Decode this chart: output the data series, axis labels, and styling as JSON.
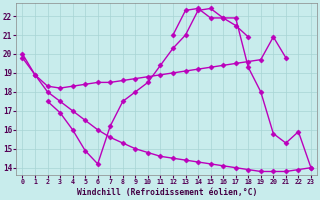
{
  "xlabel": "Windchill (Refroidissement éolien,°C)",
  "xlim": [
    -0.5,
    23.5
  ],
  "ylim": [
    13.6,
    22.7
  ],
  "xticks": [
    0,
    1,
    2,
    3,
    4,
    5,
    6,
    7,
    8,
    9,
    10,
    11,
    12,
    13,
    14,
    15,
    16,
    17,
    18,
    19,
    20,
    21,
    22,
    23
  ],
  "yticks": [
    14,
    15,
    16,
    17,
    18,
    19,
    20,
    21,
    22
  ],
  "background_color": "#c8ecec",
  "grid_color": "#a8d4d4",
  "line_color": "#bb00bb",
  "line_width": 1.0,
  "marker": "D",
  "marker_size": 2.5,
  "curves": [
    {
      "x": [
        12,
        13,
        14,
        15,
        16,
        17,
        18
      ],
      "y": [
        21.0,
        22.3,
        22.4,
        21.9,
        21.9,
        21.5,
        20.9
      ]
    },
    {
      "x": [
        0,
        1,
        2,
        3,
        4,
        5,
        6,
        7,
        8,
        9,
        10,
        11,
        12,
        13,
        14,
        15,
        16,
        17,
        18,
        19,
        20,
        21
      ],
      "y": [
        20.0,
        18.9,
        18.3,
        18.2,
        18.3,
        18.4,
        18.5,
        18.5,
        18.6,
        18.7,
        18.8,
        18.9,
        19.0,
        19.1,
        19.2,
        19.3,
        19.4,
        19.5,
        19.6,
        19.7,
        20.9,
        19.8
      ]
    },
    {
      "x": [
        2,
        3,
        4,
        5,
        6,
        7,
        8,
        9,
        10,
        11,
        12,
        13,
        14,
        15,
        16,
        17,
        18,
        19,
        20,
        21,
        22,
        23
      ],
      "y": [
        17.5,
        16.9,
        16.0,
        14.9,
        14.2,
        16.2,
        17.5,
        18.0,
        18.5,
        19.4,
        20.3,
        21.0,
        22.3,
        22.4,
        21.9,
        21.9,
        19.3,
        18.0,
        15.8,
        15.3,
        15.9,
        14.0
      ]
    },
    {
      "x": [
        0,
        1,
        2,
        3,
        4,
        5,
        6,
        7,
        8,
        9,
        10,
        11,
        12,
        13,
        14,
        15,
        16,
        17,
        18,
        19,
        20,
        21,
        22,
        23
      ],
      "y": [
        19.8,
        18.9,
        18.0,
        17.5,
        17.0,
        16.5,
        16.0,
        15.6,
        15.3,
        15.0,
        14.8,
        14.6,
        14.5,
        14.4,
        14.3,
        14.2,
        14.1,
        14.0,
        13.9,
        13.8,
        13.8,
        13.8,
        13.9,
        14.0
      ]
    }
  ]
}
